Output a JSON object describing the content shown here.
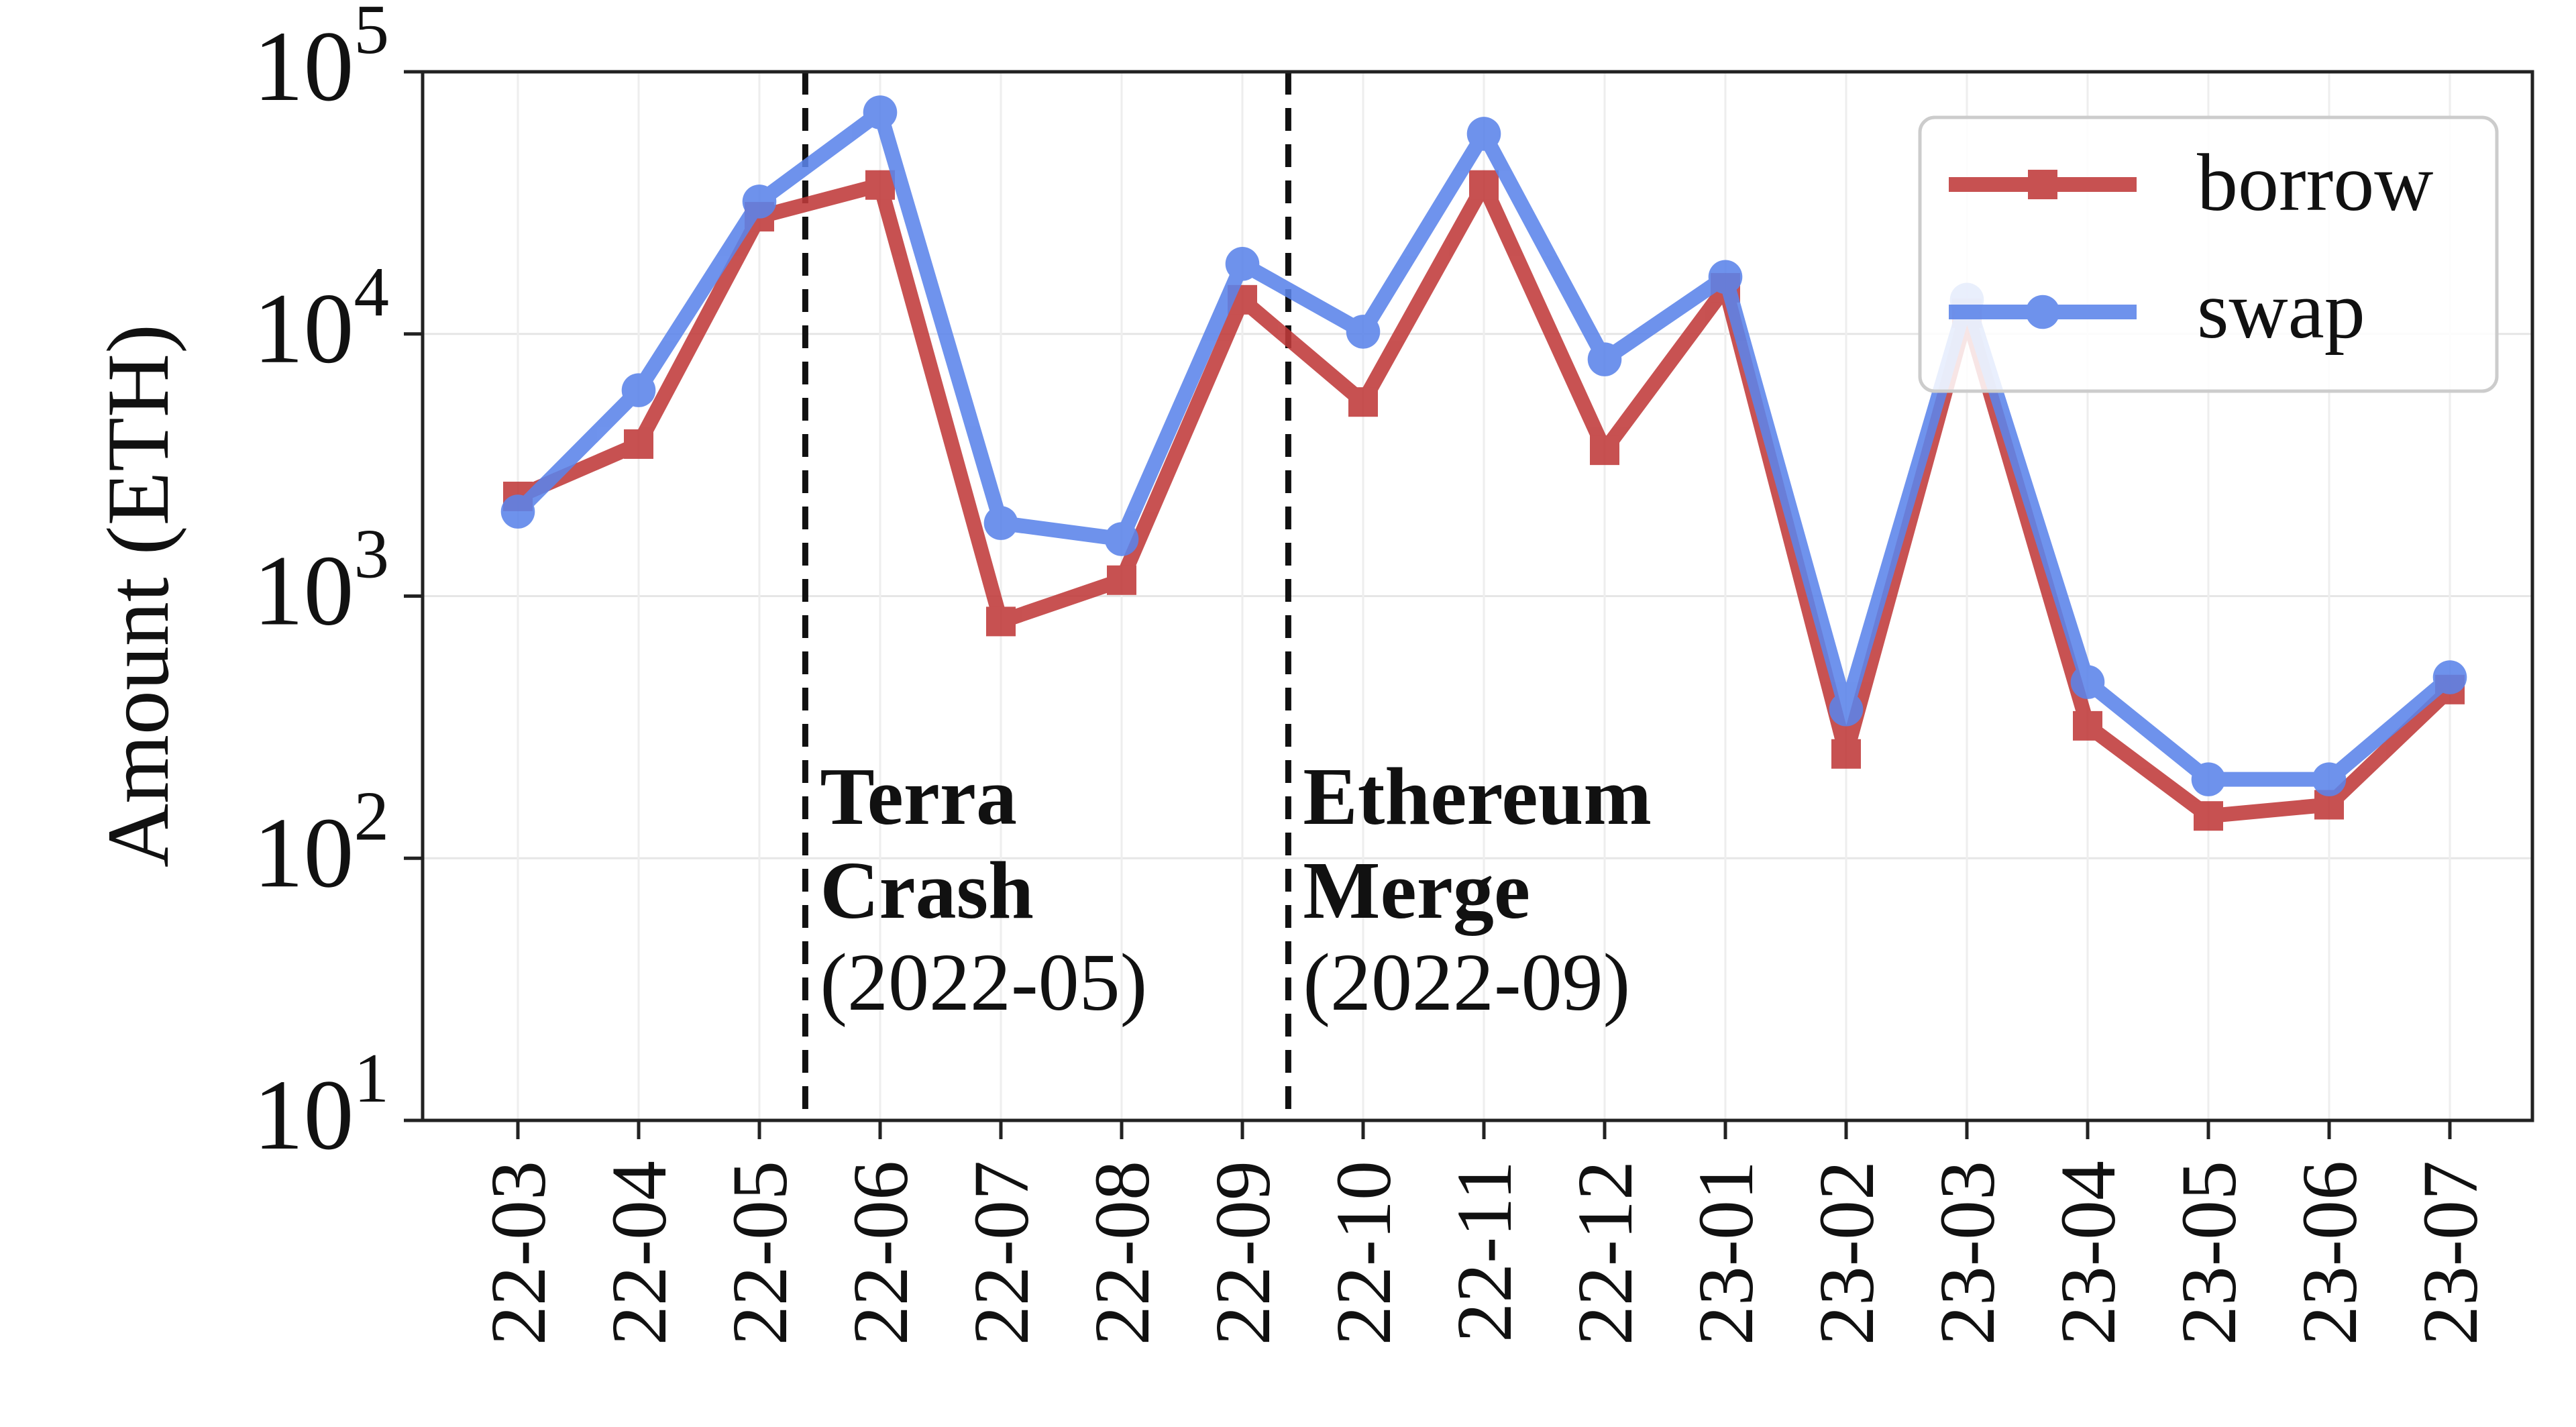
{
  "chart_data": {
    "type": "line",
    "title": "",
    "xlabel": "",
    "ylabel": "Amount (ETH)",
    "yscale": "log",
    "ylim": [
      10,
      100000
    ],
    "y_ticks": [
      {
        "value": 10,
        "base": "10",
        "exp": "1"
      },
      {
        "value": 100,
        "base": "10",
        "exp": "2"
      },
      {
        "value": 1000,
        "base": "10",
        "exp": "3"
      },
      {
        "value": 10000,
        "base": "10",
        "exp": "4"
      },
      {
        "value": 100000,
        "base": "10",
        "exp": "5"
      }
    ],
    "categories": [
      "22-03",
      "22-04",
      "22-05",
      "22-06",
      "22-07",
      "22-08",
      "22-09",
      "22-10",
      "22-11",
      "22-12",
      "23-01",
      "23-02",
      "23-03",
      "23-04",
      "23-05",
      "23-06",
      "23-07"
    ],
    "grid": true,
    "legend_position": "top-right",
    "series": [
      {
        "name": "borrow",
        "color": "#c03a3a",
        "marker": "square",
        "values": [
          2400,
          3800,
          28000,
          37000,
          800,
          1150,
          13500,
          5500,
          37000,
          3600,
          15000,
          250,
          12000,
          320,
          145,
          160,
          440
        ]
      },
      {
        "name": "swap",
        "color": "#5b84ea",
        "marker": "circle",
        "values": [
          2100,
          6100,
          32000,
          70000,
          1900,
          1650,
          18500,
          10200,
          58000,
          8000,
          16500,
          370,
          13500,
          470,
          200,
          200,
          490
        ]
      }
    ],
    "annotations": [
      {
        "after_index": 2,
        "label_bold": [
          "Terra",
          "Crash"
        ],
        "label_normal": "(2022-05)"
      },
      {
        "after_index": 6,
        "label_bold": [
          "Ethereum",
          "Merge"
        ],
        "label_normal": "(2022-09)"
      }
    ]
  }
}
